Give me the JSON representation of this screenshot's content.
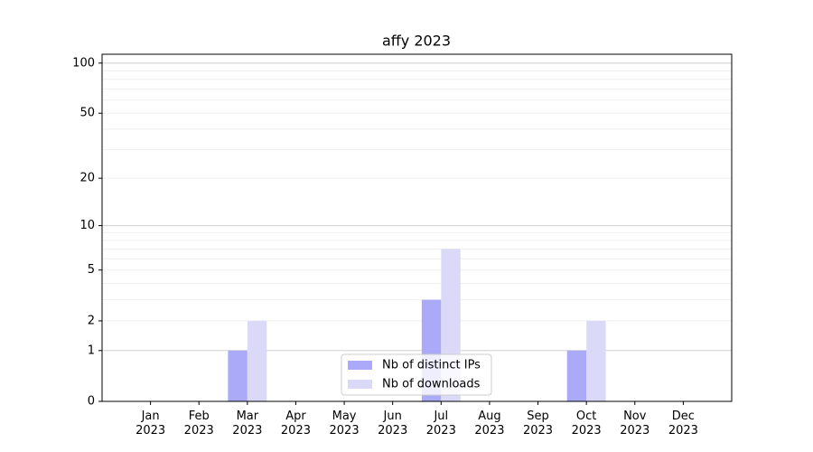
{
  "chart_data": {
    "type": "bar",
    "title": "affy 2023",
    "categories": [
      "Jan 2023",
      "Feb 2023",
      "Mar 2023",
      "Apr 2023",
      "May 2023",
      "Jun 2023",
      "Jul 2023",
      "Aug 2023",
      "Sep 2023",
      "Oct 2023",
      "Nov 2023",
      "Dec 2023"
    ],
    "series": [
      {
        "name": "Nb of distinct IPs",
        "color": "#aaaaf8",
        "values": [
          0,
          0,
          1,
          0,
          0,
          0,
          3,
          0,
          0,
          1,
          0,
          0
        ]
      },
      {
        "name": "Nb of downloads",
        "color": "#dadaf8",
        "values": [
          0,
          0,
          2,
          0,
          0,
          0,
          7,
          0,
          0,
          2,
          0,
          0
        ]
      }
    ],
    "yscale": "log1p",
    "ylim": [
      0,
      113
    ],
    "yticks": [
      0,
      1,
      2,
      5,
      10,
      20,
      50,
      100
    ],
    "grid": true,
    "minor_grid": [
      3,
      4,
      6,
      7,
      8,
      9,
      30,
      40,
      60,
      70,
      80,
      90
    ],
    "legend": "lower center"
  }
}
